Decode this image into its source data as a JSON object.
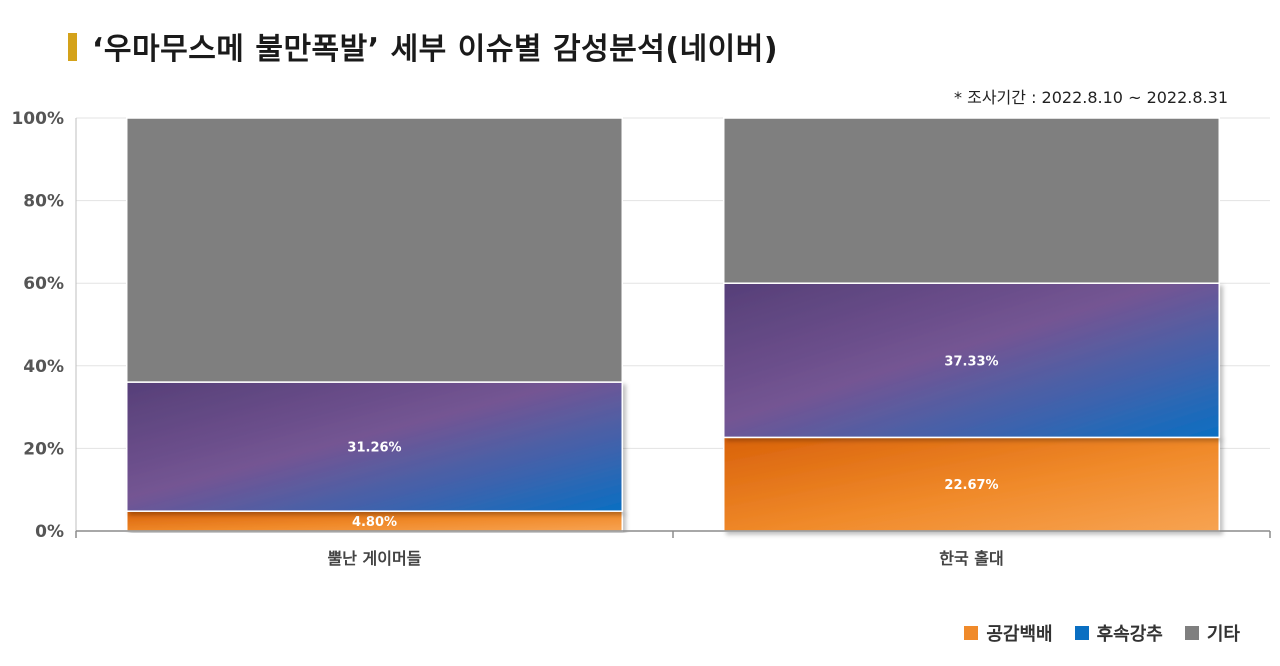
{
  "title": "‘우마무스메 불만폭발’ 세부 이슈별 감성분석(네이버)",
  "period": "* 조사기간 : 2022.8.10 ~ 2022.8.31",
  "chart_data": {
    "type": "bar",
    "stacked": true,
    "categories": [
      "뿔난 게이머들",
      "한국 홀대"
    ],
    "series": [
      {
        "name": "공감백배",
        "values": [
          4.8,
          22.67
        ],
        "labels": [
          "4.80%",
          "22.67%"
        ],
        "color": "#f08a2a"
      },
      {
        "name": "후속강추",
        "values": [
          31.26,
          37.33
        ],
        "labels": [
          "31.26%",
          "37.33%"
        ],
        "color": "#0a6fc2"
      },
      {
        "name": "기타",
        "values": [
          63.94,
          40.0
        ],
        "labels": [
          "",
          ""
        ],
        "color": "#7f7f7f"
      }
    ],
    "yticks": [
      "0%",
      "20%",
      "40%",
      "60%",
      "80%",
      "100%"
    ],
    "ylim": [
      0,
      100
    ],
    "grid": true,
    "legend_position": "bottom-right"
  }
}
